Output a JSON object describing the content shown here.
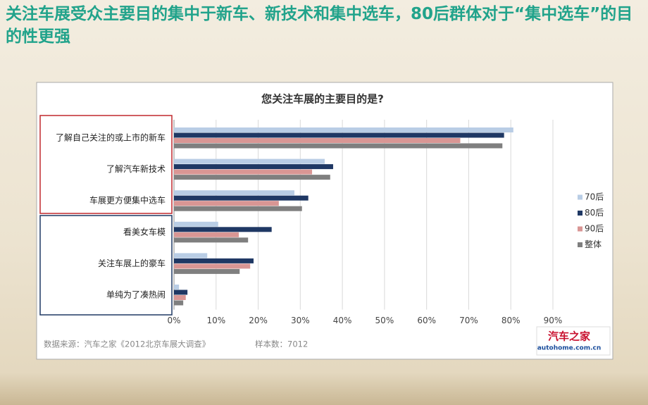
{
  "page": {
    "title": "关注车展受众主要目的集中于新车、新技术和集中选车，80后群体对于“集中选车”的目的性更强"
  },
  "chart_data": {
    "type": "bar",
    "orientation": "horizontal",
    "title": "您关注车展的主要目的是?",
    "categories": [
      "了解自己关注的或上市的新车",
      "了解汽车新技术",
      "车展更方便集中选车",
      "看美女车模",
      "关注车展上的豪车",
      "单纯为了凑热闹"
    ],
    "series": [
      {
        "name": "70后",
        "color": "#b9cde5",
        "values": [
          80.6,
          35.8,
          28.6,
          10.5,
          7.9,
          1.2
        ]
      },
      {
        "name": "80后",
        "color": "#1f3864",
        "values": [
          78.4,
          37.8,
          31.9,
          23.2,
          18.9,
          3.2
        ]
      },
      {
        "name": "90后",
        "color": "#d99694",
        "values": [
          68,
          32.8,
          24.9,
          15.4,
          18.1,
          2.8
        ]
      },
      {
        "name": "整体",
        "color": "#7f7f7f",
        "values": [
          78,
          37.1,
          30.4,
          17.6,
          15.6,
          2.2
        ]
      }
    ],
    "xlim": [
      0,
      90
    ],
    "xticks": [
      {
        "value": 0,
        "label": "0%"
      },
      {
        "value": 10,
        "label": "10%"
      },
      {
        "value": 20,
        "label": "20%"
      },
      {
        "value": 30,
        "label": "30%"
      },
      {
        "value": 40,
        "label": "40%"
      },
      {
        "value": 50,
        "label": "50%"
      },
      {
        "value": 60,
        "label": "60%"
      },
      {
        "value": 70,
        "label": "70%"
      },
      {
        "value": 80,
        "label": "80%"
      },
      {
        "value": 90,
        "label": "90%"
      }
    ],
    "grid": true,
    "legend": "right",
    "source": "数据来源：汽车之家《2012北京车展大调查》",
    "sample": "样本数：7012",
    "logo": {
      "name": "汽车之家",
      "url": "autohome.com.cn"
    }
  }
}
